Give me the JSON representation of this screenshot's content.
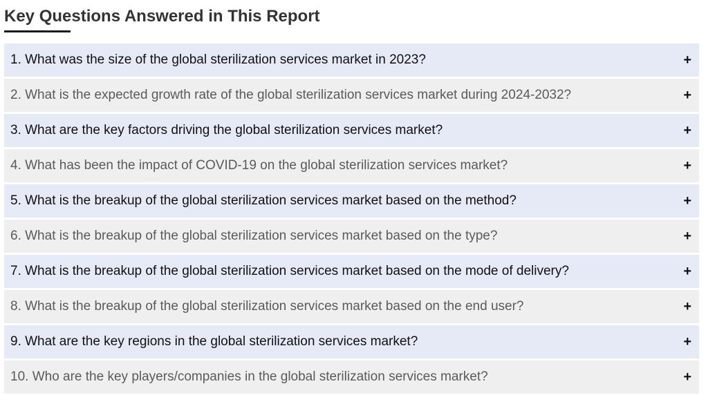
{
  "header": {
    "title": "Key Questions Answered in This Report"
  },
  "faq": {
    "items": [
      {
        "question": "1. What was the size of the global sterilization services market in 2023?",
        "toggle": "+"
      },
      {
        "question": "2. What is the expected growth rate of the global sterilization services market during 2024-2032?",
        "toggle": "+"
      },
      {
        "question": "3. What are the key factors driving the global sterilization services market?",
        "toggle": "+"
      },
      {
        "question": "4. What has been the impact of COVID-19 on the global sterilization services market?",
        "toggle": "+"
      },
      {
        "question": "5. What is the breakup of the global sterilization services market based on the method?",
        "toggle": "+"
      },
      {
        "question": "6. What is the breakup of the global sterilization services market based on the type?",
        "toggle": "+"
      },
      {
        "question": "7. What is the breakup of the global sterilization services market based on the mode of delivery?",
        "toggle": "+"
      },
      {
        "question": "8. What is the breakup of the global sterilization services market based on the end user?",
        "toggle": "+"
      },
      {
        "question": "9. What are the key regions in the global sterilization services market?",
        "toggle": "+"
      },
      {
        "question": "10. Who are the key players/companies in the global sterilization services market?",
        "toggle": "+"
      }
    ]
  }
}
